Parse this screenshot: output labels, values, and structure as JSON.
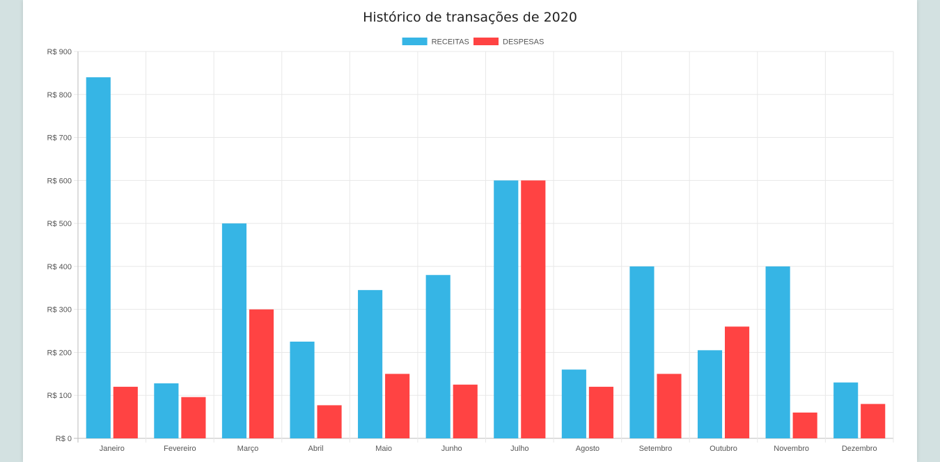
{
  "chart_data": {
    "type": "bar",
    "title": "Histórico de transações de 2020",
    "categories": [
      "Janeiro",
      "Fevereiro",
      "Março",
      "Abril",
      "Maio",
      "Junho",
      "Julho",
      "Agosto",
      "Setembro",
      "Outubro",
      "Novembro",
      "Dezembro"
    ],
    "series": [
      {
        "name": "RECEITAS",
        "color": "#36b5e5",
        "values": [
          840,
          128,
          500,
          225,
          345,
          380,
          600,
          160,
          400,
          205,
          400,
          130
        ]
      },
      {
        "name": "DESPESAS",
        "color": "#ff4343",
        "values": [
          120,
          96,
          300,
          77,
          150,
          125,
          600,
          120,
          150,
          260,
          60,
          80
        ]
      }
    ],
    "ylim": [
      0,
      900
    ],
    "yticks": [
      0,
      100,
      200,
      300,
      400,
      500,
      600,
      700,
      800,
      900
    ],
    "ytick_labels": [
      "R$ 0",
      "R$ 100",
      "R$ 200",
      "R$ 300",
      "R$ 400",
      "R$ 500",
      "R$ 600",
      "R$ 700",
      "R$ 800",
      "R$ 900"
    ],
    "grid": true,
    "legend_position": "top-center"
  }
}
